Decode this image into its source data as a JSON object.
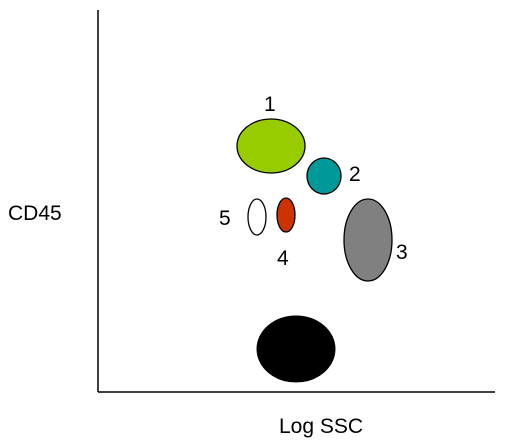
{
  "axes": {
    "x_label": "Log SSC",
    "y_label": "CD45"
  },
  "populations": [
    {
      "label": "1",
      "fill": "#99cc00",
      "name": "population-1"
    },
    {
      "label": "2",
      "fill": "#009999",
      "name": "population-2"
    },
    {
      "label": "3",
      "fill": "#808080",
      "name": "population-3"
    },
    {
      "label": "4",
      "fill": "#cc3300",
      "name": "population-4"
    },
    {
      "label": "5",
      "fill": "#ffffff",
      "name": "population-5"
    },
    {
      "label": "",
      "fill": "#000000",
      "name": "population-debris"
    }
  ],
  "colors": {
    "axis": "#000000",
    "outline": "#000000",
    "background": "#ffffff"
  }
}
